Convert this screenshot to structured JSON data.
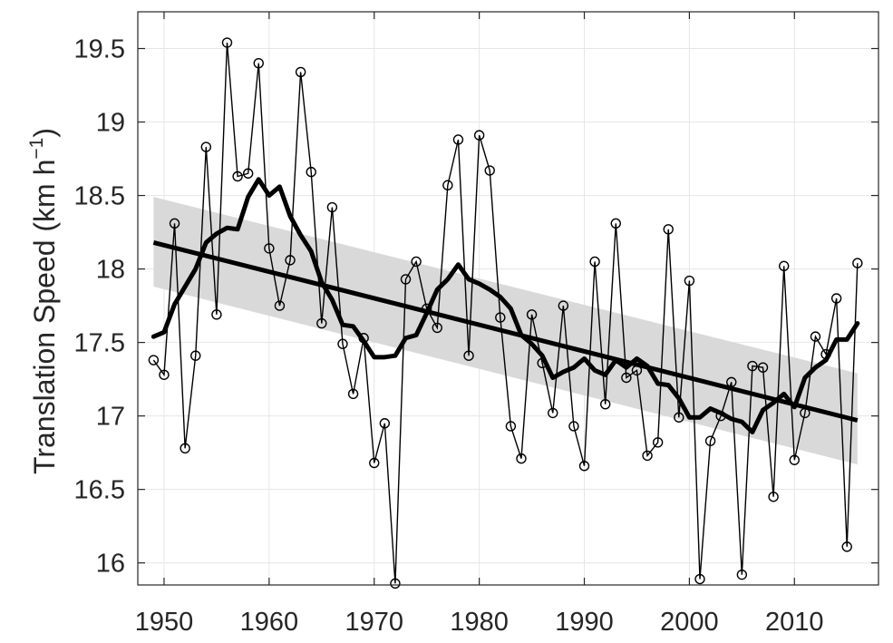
{
  "chart_data": {
    "type": "line",
    "title": "",
    "xlabel": "",
    "ylabel": "Translation Speed (km h",
    "ylabel_sup": "−1",
    "ylabel_close": ")",
    "xlim": [
      1947.5,
      2018
    ],
    "ylim": [
      15.85,
      19.75
    ],
    "xticks": [
      1950,
      1960,
      1970,
      1980,
      1990,
      2000,
      2010
    ],
    "xtick_labels": [
      "1950",
      "1960",
      "1970",
      "1980",
      "1990",
      "2000",
      "2010"
    ],
    "yticks": [
      16,
      16.5,
      17,
      17.5,
      18,
      18.5,
      19,
      19.5
    ],
    "ytick_labels": [
      "16",
      "16.5",
      "17",
      "17.5",
      "18",
      "18.5",
      "19",
      "19.5"
    ],
    "grid": true,
    "series": [
      {
        "role": "annual",
        "color": "#000000",
        "marker": "circle",
        "x": [
          1949,
          1950,
          1951,
          1952,
          1953,
          1954,
          1955,
          1956,
          1957,
          1958,
          1959,
          1960,
          1961,
          1962,
          1963,
          1964,
          1965,
          1966,
          1967,
          1968,
          1969,
          1970,
          1971,
          1972,
          1973,
          1974,
          1975,
          1976,
          1977,
          1978,
          1979,
          1980,
          1981,
          1982,
          1983,
          1984,
          1985,
          1986,
          1987,
          1988,
          1989,
          1990,
          1991,
          1992,
          1993,
          1994,
          1995,
          1996,
          1997,
          1998,
          1999,
          2000,
          2001,
          2002,
          2003,
          2004,
          2005,
          2006,
          2007,
          2008,
          2009,
          2010,
          2011,
          2012,
          2013,
          2014,
          2015,
          2016
        ],
        "y": [
          17.38,
          17.28,
          18.31,
          16.78,
          17.41,
          18.83,
          17.69,
          19.54,
          18.63,
          18.65,
          19.4,
          18.14,
          17.75,
          18.06,
          19.34,
          18.66,
          17.63,
          18.42,
          17.49,
          17.15,
          17.53,
          16.68,
          16.95,
          15.86,
          17.93,
          18.05,
          17.73,
          17.6,
          18.57,
          18.88,
          17.41,
          18.91,
          18.67,
          17.67,
          16.93,
          16.71,
          17.69,
          17.36,
          17.02,
          17.75,
          16.93,
          16.66,
          18.05,
          17.08,
          18.31,
          17.26,
          17.31,
          16.73,
          16.82,
          18.27,
          16.99,
          17.92,
          15.89,
          16.83,
          17.0,
          17.23,
          15.92,
          17.34,
          17.33,
          16.45,
          18.02,
          16.7,
          17.02,
          17.54,
          17.42,
          17.8,
          16.11,
          18.04
        ]
      },
      {
        "role": "smoothed",
        "color": "#000000",
        "x": [
          1949,
          1950,
          1951,
          1952,
          1953,
          1954,
          1955,
          1956,
          1957,
          1958,
          1959,
          1960,
          1961,
          1962,
          1963,
          1964,
          1965,
          1966,
          1967,
          1968,
          1969,
          1970,
          1971,
          1972,
          1973,
          1974,
          1975,
          1976,
          1977,
          1978,
          1979,
          1980,
          1981,
          1982,
          1983,
          1984,
          1985,
          1986,
          1987,
          1988,
          1989,
          1990,
          1991,
          1992,
          1993,
          1994,
          1995,
          1996,
          1997,
          1998,
          1999,
          2000,
          2001,
          2002,
          2003,
          2004,
          2005,
          2006,
          2007,
          2008,
          2009,
          2010,
          2011,
          2012,
          2013,
          2014,
          2015,
          2016
        ],
        "y": [
          17.54,
          17.57,
          17.76,
          17.88,
          18.0,
          18.18,
          18.24,
          18.28,
          18.27,
          18.49,
          18.61,
          18.5,
          18.56,
          18.36,
          18.23,
          18.12,
          17.91,
          17.79,
          17.62,
          17.61,
          17.51,
          17.4,
          17.4,
          17.41,
          17.53,
          17.55,
          17.7,
          17.86,
          17.93,
          18.03,
          17.93,
          17.9,
          17.86,
          17.81,
          17.73,
          17.55,
          17.49,
          17.41,
          17.26,
          17.3,
          17.33,
          17.39,
          17.31,
          17.28,
          17.38,
          17.33,
          17.39,
          17.34,
          17.22,
          17.21,
          17.12,
          16.99,
          16.99,
          17.05,
          17.02,
          16.98,
          16.96,
          16.89,
          17.04,
          17.09,
          17.15,
          17.06,
          17.26,
          17.33,
          17.38,
          17.52,
          17.52,
          17.63
        ]
      },
      {
        "role": "linear-trend",
        "color": "#000000",
        "x": [
          1949,
          2016
        ],
        "y": [
          18.18,
          16.97
        ],
        "confidence_band": {
          "color": "#d9d9d9",
          "x": [
            1949,
            2016
          ],
          "upper": [
            18.49,
            17.29
          ],
          "lower": [
            17.88,
            16.67
          ]
        }
      }
    ]
  }
}
